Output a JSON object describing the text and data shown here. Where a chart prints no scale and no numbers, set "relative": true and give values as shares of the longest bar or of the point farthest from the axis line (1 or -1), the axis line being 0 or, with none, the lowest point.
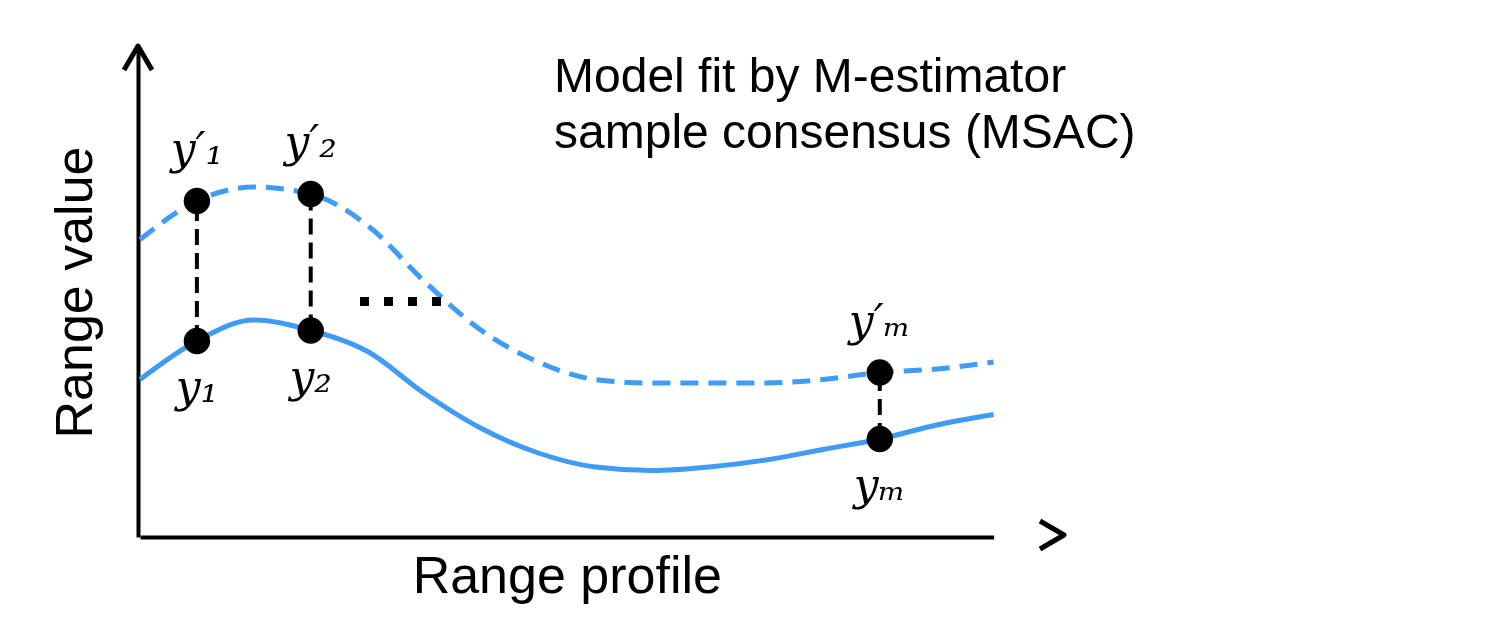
{
  "chart_data": {
    "type": "line",
    "relative": true,
    "title": "Model fit by M-estimator\nsample consensus (MSAC)",
    "xlabel": "Range profile",
    "ylabel": "Range value",
    "categories": [
      null,
      null,
      null,
      null,
      null,
      null,
      null,
      null,
      null,
      null,
      null,
      null,
      null,
      null,
      null,
      null
    ],
    "series": [
      {
        "color": "#3f9bf5",
        "line_style": "solid",
        "values": [
          0.45,
          0.56,
          0.62,
          0.59,
          0.53,
          0.41,
          0.31,
          0.24,
          0.2,
          0.19,
          0.2,
          0.22,
          0.25,
          0.28,
          0.32,
          0.35
        ]
      },
      {
        "color": "#3f9bf5",
        "line_style": "dashed",
        "values": [
          0.85,
          0.96,
          1.0,
          0.98,
          0.89,
          0.73,
          0.59,
          0.5,
          0.45,
          0.44,
          0.44,
          0.44,
          0.45,
          0.47,
          0.48,
          0.5
        ]
      }
    ],
    "annotations": [
      {
        "text": "y′₁",
        "y": 0.96
      },
      {
        "text": "y′₂",
        "y": 0.98
      },
      {
        "text": "y′ₘ",
        "y": 0.47
      },
      {
        "text": "y₁",
        "y": 0.56
      },
      {
        "text": "y₂",
        "y": 0.59
      },
      {
        "text": "yₘ",
        "y": 0.28
      }
    ]
  }
}
